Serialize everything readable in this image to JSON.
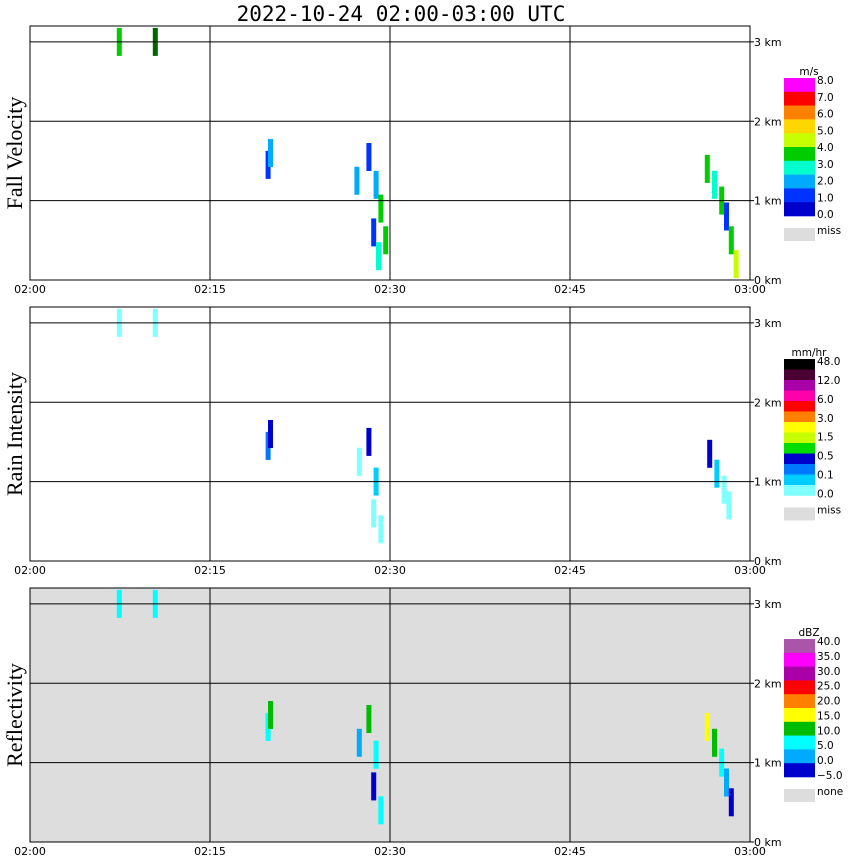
{
  "figure": {
    "title": "2022-10-24   02:00-03:00 UTC"
  },
  "chart_data": [
    {
      "type": "heatmap",
      "title": "Fall Velocity",
      "xlabel": "",
      "ylabel": "",
      "x_ticks": [
        "02:00",
        "02:15",
        "02:30",
        "02:45",
        "03:00"
      ],
      "y_ticks": [
        "0 km",
        "1 km",
        "2 km",
        "3 km"
      ],
      "x_range_min": [
        0,
        60
      ],
      "y_range_km": [
        0,
        3.2
      ],
      "grid": true,
      "background": "#ffffff",
      "legend": {
        "unit": "m/s",
        "labels": [
          "8.0",
          "7.0",
          "6.0",
          "5.0",
          "4.0",
          "3.0",
          "2.0",
          "1.0",
          "0.0"
        ],
        "colors": [
          "#ff00ff",
          "#ff0000",
          "#ff7f00",
          "#ffd700",
          "#c8ff00",
          "#00cc00",
          "#00ffcc",
          "#00aaff",
          "#0033ff",
          "#0000cc"
        ],
        "miss_label": "miss",
        "miss_color": "#dddddd"
      },
      "echoes": [
        {
          "t_min": 7.4,
          "h_km": 3.0,
          "color": "#00cc00"
        },
        {
          "t_min": 10.4,
          "h_km": 3.0,
          "color": "#006600"
        },
        {
          "t_min": 19.8,
          "h_km": 1.45,
          "color": "#0033ff"
        },
        {
          "t_min": 20.0,
          "h_km": 1.6,
          "color": "#00aaff"
        },
        {
          "t_min": 27.2,
          "h_km": 1.25,
          "color": "#00aaff"
        },
        {
          "t_min": 28.2,
          "h_km": 1.55,
          "color": "#0033ff"
        },
        {
          "t_min": 28.8,
          "h_km": 1.2,
          "color": "#00aaff"
        },
        {
          "t_min": 29.2,
          "h_km": 0.9,
          "color": "#00cc00"
        },
        {
          "t_min": 28.6,
          "h_km": 0.6,
          "color": "#0033ff"
        },
        {
          "t_min": 29.6,
          "h_km": 0.5,
          "color": "#00cc00"
        },
        {
          "t_min": 29.0,
          "h_km": 0.3,
          "color": "#00ffcc"
        },
        {
          "t_min": 56.4,
          "h_km": 1.4,
          "color": "#00cc00"
        },
        {
          "t_min": 57.0,
          "h_km": 1.2,
          "color": "#00ffcc"
        },
        {
          "t_min": 57.6,
          "h_km": 1.0,
          "color": "#00cc00"
        },
        {
          "t_min": 58.0,
          "h_km": 0.8,
          "color": "#0033ff"
        },
        {
          "t_min": 58.4,
          "h_km": 0.5,
          "color": "#00cc00"
        },
        {
          "t_min": 58.8,
          "h_km": 0.2,
          "color": "#c8ff00"
        }
      ]
    },
    {
      "type": "heatmap",
      "title": "Rain Intensity",
      "xlabel": "",
      "ylabel": "",
      "x_ticks": [
        "02:00",
        "02:15",
        "02:30",
        "02:45",
        "03:00"
      ],
      "y_ticks": [
        "0 km",
        "1 km",
        "2 km",
        "3 km"
      ],
      "x_range_min": [
        0,
        60
      ],
      "y_range_km": [
        0,
        3.2
      ],
      "grid": true,
      "background": "#ffffff",
      "legend": {
        "unit": "mm/hr",
        "labels": [
          "48.0",
          "12.0",
          "6.0",
          "3.0",
          "1.5",
          "0.5",
          "0.1",
          "0.0"
        ],
        "colors": [
          "#000000",
          "#4b0033",
          "#aa00aa",
          "#ff00aa",
          "#ff0000",
          "#ff7f00",
          "#ffff00",
          "#c8ff00",
          "#00dd00",
          "#0000cc",
          "#0077ff",
          "#00ccff",
          "#80ffff"
        ],
        "miss_label": "miss",
        "miss_color": "#dddddd"
      },
      "echoes": [
        {
          "t_min": 7.4,
          "h_km": 3.0,
          "color": "#80ffff"
        },
        {
          "t_min": 10.4,
          "h_km": 3.0,
          "color": "#80ffff"
        },
        {
          "t_min": 19.8,
          "h_km": 1.45,
          "color": "#0077ff"
        },
        {
          "t_min": 20.0,
          "h_km": 1.6,
          "color": "#0000cc"
        },
        {
          "t_min": 27.4,
          "h_km": 1.25,
          "color": "#80ffff"
        },
        {
          "t_min": 28.2,
          "h_km": 1.5,
          "color": "#0000cc"
        },
        {
          "t_min": 28.8,
          "h_km": 1.0,
          "color": "#00ccff"
        },
        {
          "t_min": 28.6,
          "h_km": 0.6,
          "color": "#80ffff"
        },
        {
          "t_min": 29.2,
          "h_km": 0.4,
          "color": "#80ffff"
        },
        {
          "t_min": 56.6,
          "h_km": 1.35,
          "color": "#0000cc"
        },
        {
          "t_min": 57.2,
          "h_km": 1.1,
          "color": "#00ccff"
        },
        {
          "t_min": 57.8,
          "h_km": 0.9,
          "color": "#80ffff"
        },
        {
          "t_min": 58.2,
          "h_km": 0.7,
          "color": "#80ffff"
        }
      ]
    },
    {
      "type": "heatmap",
      "title": "Reflectivity",
      "xlabel": "",
      "ylabel": "",
      "x_ticks": [
        "02:00",
        "02:15",
        "02:30",
        "02:45",
        "03:00"
      ],
      "y_ticks": [
        "0 km",
        "1 km",
        "2 km",
        "3 km"
      ],
      "x_range_min": [
        0,
        60
      ],
      "y_range_km": [
        0,
        3.2
      ],
      "grid": true,
      "background": "#dddddd",
      "legend": {
        "unit": "dBZ",
        "labels": [
          "40.0",
          "35.0",
          "30.0",
          "25.0",
          "20.0",
          "15.0",
          "10.0",
          "5.0",
          "0.0",
          "−5.0"
        ],
        "colors": [
          "#aa55aa",
          "#ff00ff",
          "#aa00aa",
          "#ff0000",
          "#ff7f00",
          "#ffff00",
          "#00bb00",
          "#00ffff",
          "#00aaff",
          "#0000cc"
        ],
        "miss_label": "none",
        "miss_color": "#dddddd"
      },
      "echoes": [
        {
          "t_min": 7.4,
          "h_km": 3.0,
          "color": "#00ffff"
        },
        {
          "t_min": 10.4,
          "h_km": 3.0,
          "color": "#00ffff"
        },
        {
          "t_min": 19.8,
          "h_km": 1.45,
          "color": "#00ffff"
        },
        {
          "t_min": 20.0,
          "h_km": 1.6,
          "color": "#00bb00"
        },
        {
          "t_min": 27.4,
          "h_km": 1.25,
          "color": "#00aaff"
        },
        {
          "t_min": 28.2,
          "h_km": 1.55,
          "color": "#00bb00"
        },
        {
          "t_min": 28.8,
          "h_km": 1.1,
          "color": "#00ffff"
        },
        {
          "t_min": 28.6,
          "h_km": 0.7,
          "color": "#0000cc"
        },
        {
          "t_min": 29.2,
          "h_km": 0.4,
          "color": "#00ffff"
        },
        {
          "t_min": 56.4,
          "h_km": 1.45,
          "color": "#ffff00"
        },
        {
          "t_min": 57.0,
          "h_km": 1.25,
          "color": "#00bb00"
        },
        {
          "t_min": 57.6,
          "h_km": 1.0,
          "color": "#00ffff"
        },
        {
          "t_min": 58.0,
          "h_km": 0.75,
          "color": "#00aaff"
        },
        {
          "t_min": 58.4,
          "h_km": 0.5,
          "color": "#0000cc"
        }
      ]
    }
  ]
}
